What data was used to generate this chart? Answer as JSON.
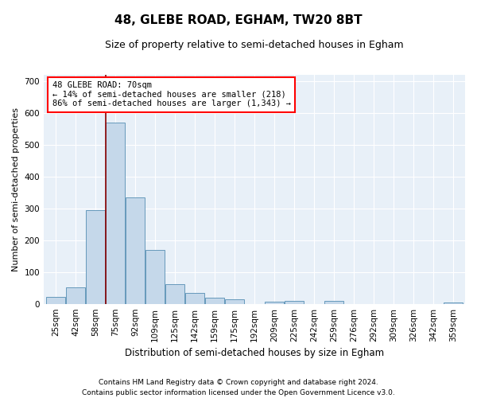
{
  "title": "48, GLEBE ROAD, EGHAM, TW20 8BT",
  "subtitle": "Size of property relative to semi-detached houses in Egham",
  "xlabel": "Distribution of semi-detached houses by size in Egham",
  "ylabel": "Number of semi-detached properties",
  "categories": [
    "25sqm",
    "42sqm",
    "58sqm",
    "75sqm",
    "92sqm",
    "109sqm",
    "125sqm",
    "142sqm",
    "159sqm",
    "175sqm",
    "192sqm",
    "209sqm",
    "225sqm",
    "242sqm",
    "259sqm",
    "276sqm",
    "292sqm",
    "309sqm",
    "326sqm",
    "342sqm",
    "359sqm"
  ],
  "values": [
    22,
    52,
    295,
    570,
    335,
    168,
    62,
    35,
    18,
    15,
    0,
    7,
    10,
    0,
    8,
    0,
    0,
    0,
    0,
    0,
    3
  ],
  "bar_color": "#c5d8ea",
  "bar_edge_color": "#6699bb",
  "property_line_x": 2.5,
  "annotation_text_line1": "48 GLEBE ROAD: 70sqm",
  "annotation_text_line2": "← 14% of semi-detached houses are smaller (218)",
  "annotation_text_line3": "86% of semi-detached houses are larger (1,343) →",
  "ylim": [
    0,
    720
  ],
  "yticks": [
    0,
    100,
    200,
    300,
    400,
    500,
    600,
    700
  ],
  "background_color": "#e8f0f8",
  "grid_color": "#ffffff",
  "footer1": "Contains HM Land Registry data © Crown copyright and database right 2024.",
  "footer2": "Contains public sector information licensed under the Open Government Licence v3.0.",
  "title_fontsize": 11,
  "subtitle_fontsize": 9,
  "axis_label_fontsize": 8,
  "tick_fontsize": 7.5,
  "footer_fontsize": 6.5,
  "annot_fontsize": 7.5
}
